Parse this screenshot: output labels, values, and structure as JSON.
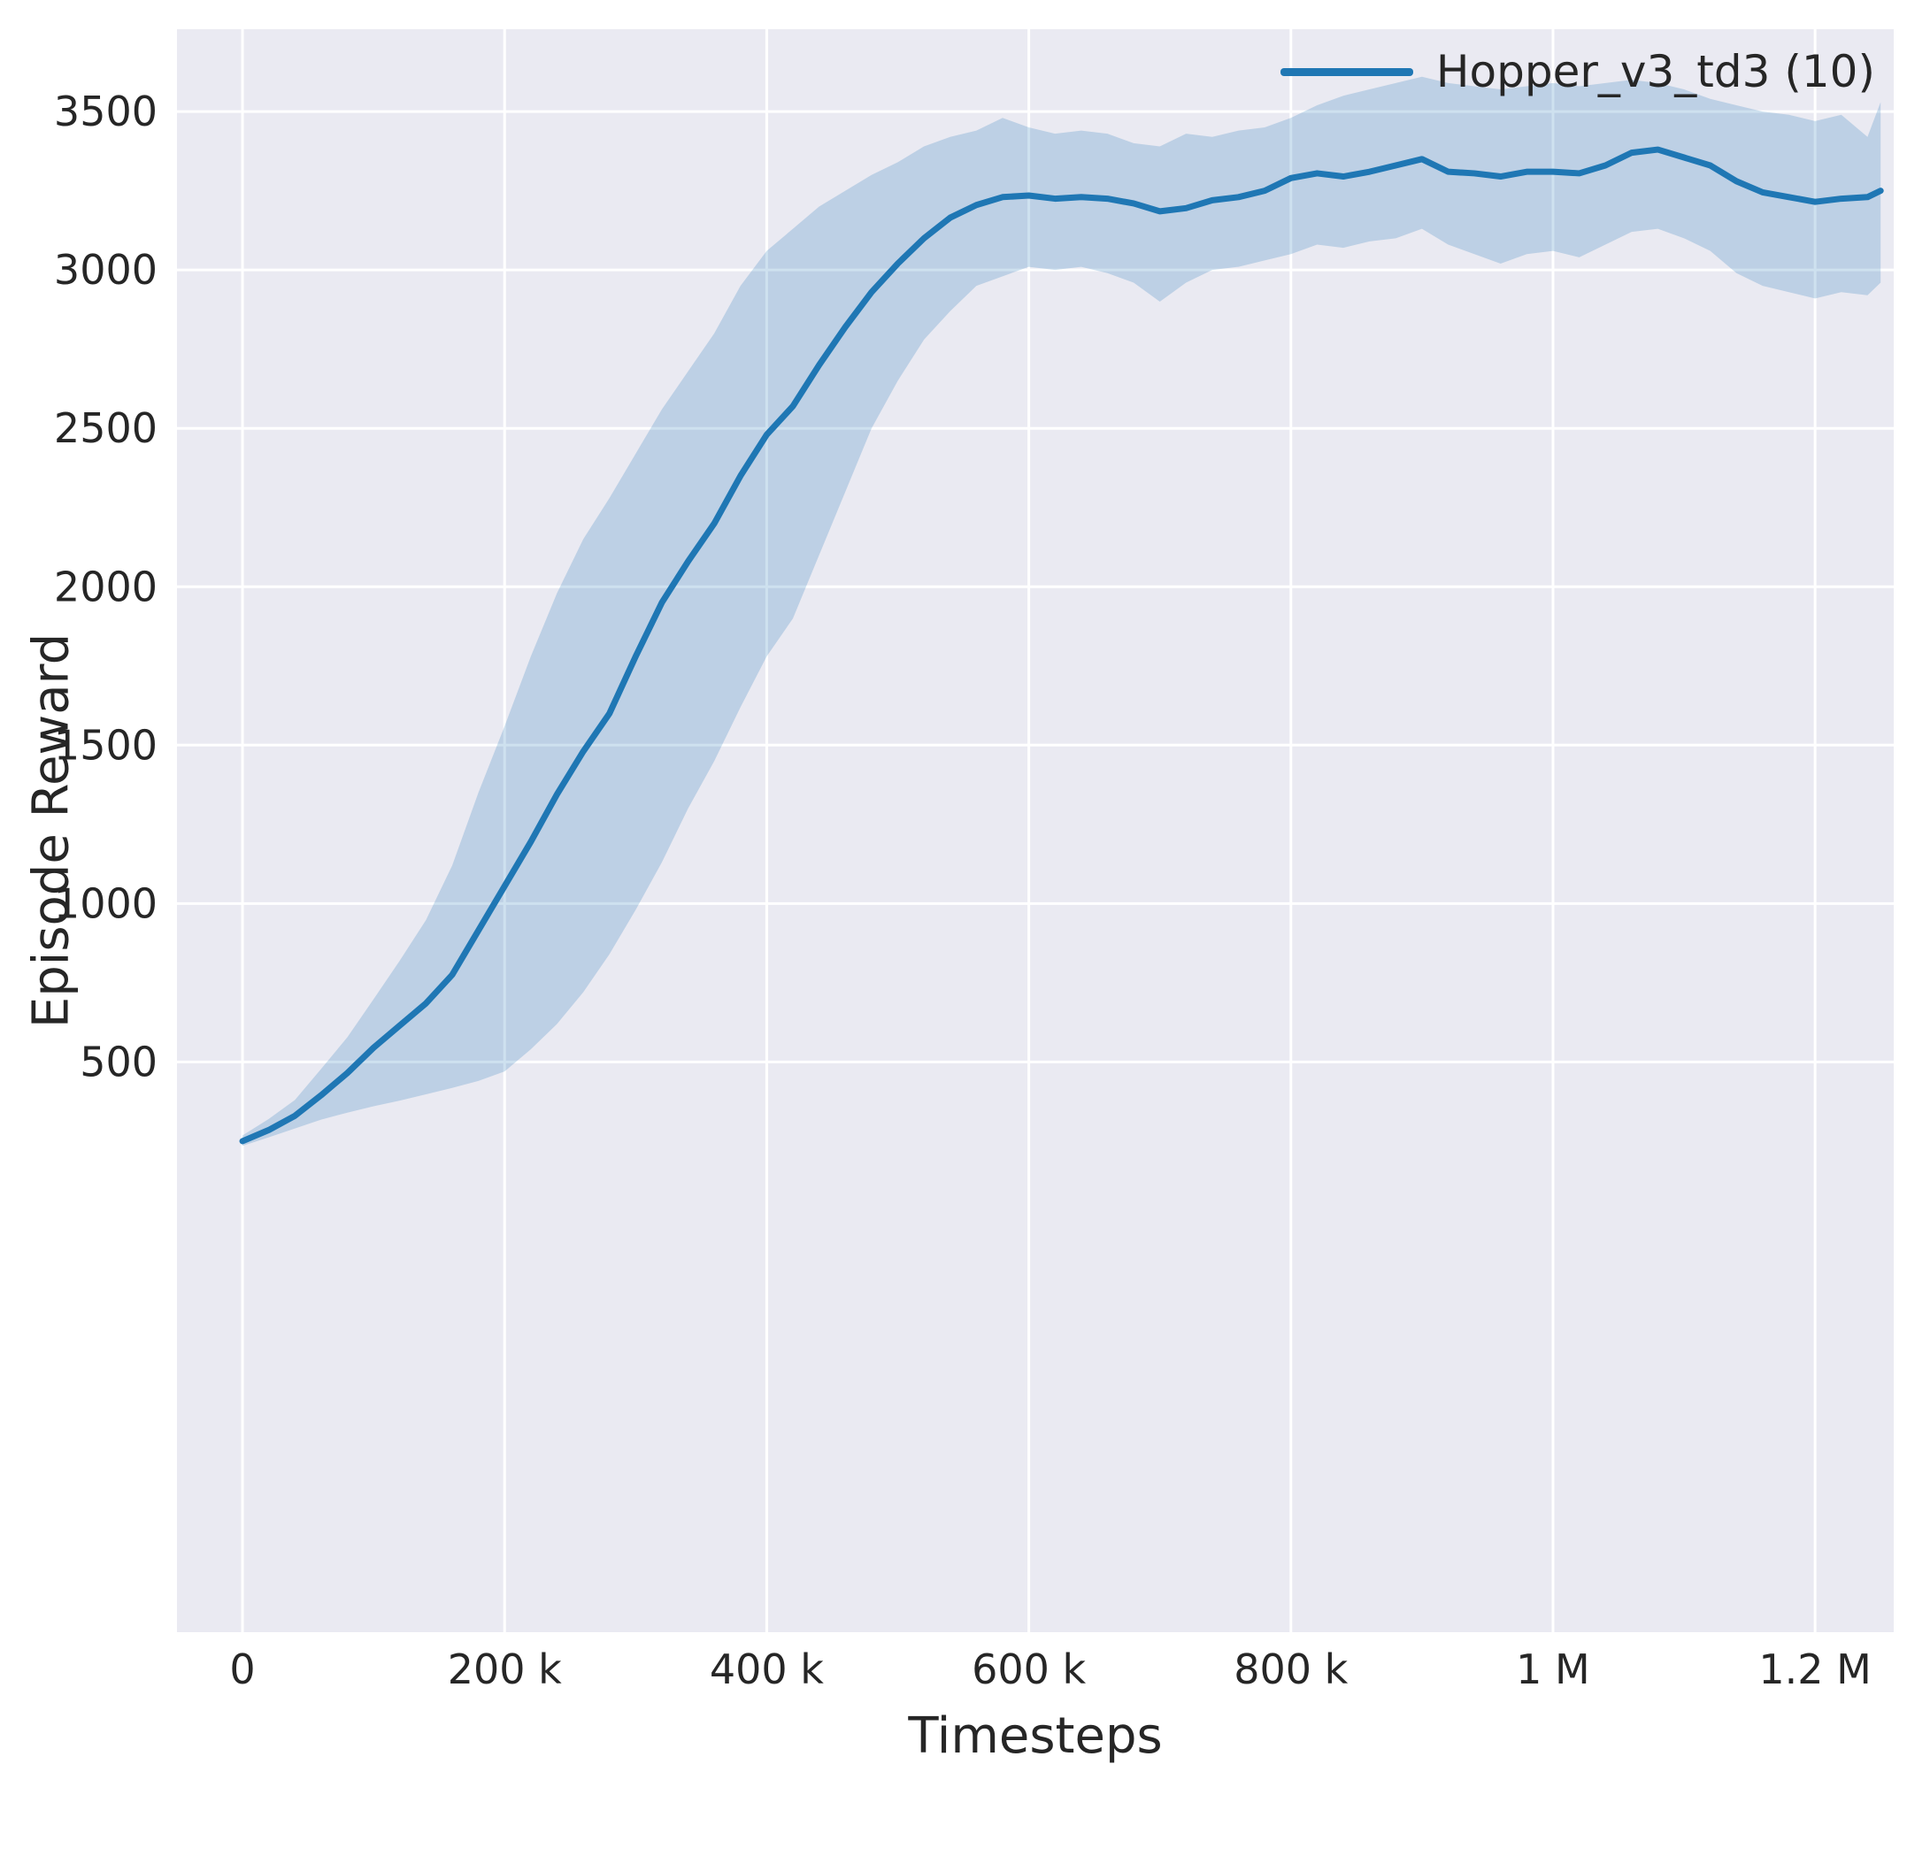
{
  "figure": {
    "background": "#ffffff",
    "plot_background": "#eaeaf2",
    "grid_color": "#ffffff",
    "text_color": "#262626"
  },
  "legend": {
    "entries": [
      {
        "label": "Hopper_v3_td3 (10)",
        "color": "#1f77b4"
      }
    ]
  },
  "chart_data": {
    "type": "line",
    "title": "",
    "xlabel": "Timesteps",
    "ylabel": "Episode Reward",
    "xlim": [
      -50000,
      1260000
    ],
    "ylim": [
      -1300,
      3760
    ],
    "grid": true,
    "legend_position": "upper right",
    "xticks": {
      "values": [
        0,
        200000,
        400000,
        600000,
        800000,
        1000000,
        1200000
      ],
      "labels": [
        "0",
        "200 k",
        "400 k",
        "600 k",
        "800 k",
        "1 M",
        "1.2 M"
      ]
    },
    "yticks": {
      "values": [
        500,
        1000,
        1500,
        2000,
        2500,
        3000,
        3500
      ],
      "labels": [
        "500",
        "1000",
        "1500",
        "2000",
        "2500",
        "3000",
        "3500"
      ]
    },
    "series": [
      {
        "name": "Hopper_v3_td3 (10)",
        "color": "#1f77b4",
        "band_opacity": 0.22,
        "line_width": 7,
        "x": [
          0,
          20000,
          40000,
          60000,
          80000,
          100000,
          120000,
          140000,
          160000,
          180000,
          200000,
          220000,
          240000,
          260000,
          280000,
          300000,
          320000,
          340000,
          360000,
          380000,
          400000,
          420000,
          440000,
          460000,
          480000,
          500000,
          520000,
          540000,
          560000,
          580000,
          600000,
          620000,
          640000,
          660000,
          680000,
          700000,
          720000,
          740000,
          760000,
          780000,
          800000,
          820000,
          840000,
          860000,
          880000,
          900000,
          920000,
          940000,
          960000,
          980000,
          1000000,
          1020000,
          1040000,
          1060000,
          1080000,
          1100000,
          1120000,
          1140000,
          1160000,
          1180000,
          1200000,
          1220000,
          1240000,
          1250000
        ],
        "mean": [
          250,
          285,
          330,
          395,
          465,
          545,
          615,
          685,
          775,
          915,
          1055,
          1195,
          1345,
          1480,
          1600,
          1780,
          1950,
          2080,
          2200,
          2350,
          2480,
          2570,
          2700,
          2820,
          2930,
          3020,
          3100,
          3165,
          3205,
          3230,
          3235,
          3225,
          3230,
          3225,
          3210,
          3185,
          3195,
          3220,
          3230,
          3250,
          3290,
          3305,
          3295,
          3310,
          3330,
          3350,
          3310,
          3305,
          3295,
          3310,
          3310,
          3305,
          3330,
          3370,
          3380,
          3355,
          3330,
          3280,
          3245,
          3230,
          3215,
          3225,
          3230,
          3250
        ],
        "lower": [
          235,
          262,
          290,
          318,
          340,
          360,
          378,
          398,
          418,
          440,
          470,
          540,
          620,
          720,
          840,
          980,
          1130,
          1300,
          1450,
          1620,
          1780,
          1900,
          2100,
          2300,
          2500,
          2650,
          2780,
          2870,
          2950,
          2980,
          3010,
          3000,
          3010,
          2990,
          2960,
          2900,
          2960,
          3000,
          3010,
          3030,
          3050,
          3080,
          3070,
          3090,
          3100,
          3130,
          3080,
          3050,
          3020,
          3050,
          3060,
          3040,
          3080,
          3120,
          3130,
          3100,
          3060,
          2990,
          2950,
          2930,
          2910,
          2930,
          2920,
          2960
        ],
        "upper": [
          268,
          320,
          380,
          478,
          578,
          698,
          820,
          948,
          1120,
          1350,
          1560,
          1780,
          1980,
          2150,
          2280,
          2420,
          2560,
          2680,
          2800,
          2950,
          3060,
          3130,
          3200,
          3250,
          3300,
          3340,
          3390,
          3420,
          3440,
          3480,
          3450,
          3430,
          3440,
          3430,
          3400,
          3390,
          3430,
          3420,
          3440,
          3450,
          3480,
          3520,
          3550,
          3570,
          3590,
          3610,
          3590,
          3580,
          3570,
          3580,
          3590,
          3580,
          3590,
          3600,
          3590,
          3570,
          3540,
          3520,
          3500,
          3490,
          3470,
          3490,
          3420,
          3530
        ]
      }
    ]
  }
}
